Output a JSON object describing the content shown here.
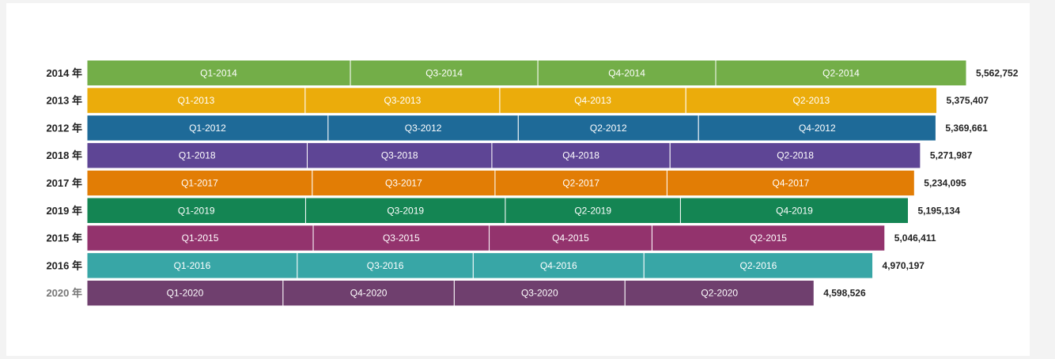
{
  "chart_data": {
    "type": "bar",
    "orientation": "horizontal",
    "stacked": true,
    "grid": false,
    "legend": "none",
    "rows": [
      {
        "label": "2014 年",
        "color": "#73ae48",
        "total_label": "5,562,752",
        "segments": [
          {
            "label": "Q1-2014",
            "value": 1666000
          },
          {
            "label": "Q3-2014",
            "value": 1186000
          },
          {
            "label": "Q4-2014",
            "value": 1125000
          },
          {
            "label": "Q2-2014",
            "value": 1585752
          }
        ]
      },
      {
        "label": "2013 年",
        "color": "#ebac0b",
        "total_label": "5,375,407",
        "segments": [
          {
            "label": "Q1-2013",
            "value": 1380000
          },
          {
            "label": "Q3-2013",
            "value": 1231000
          },
          {
            "label": "Q4-2013",
            "value": 1177000
          },
          {
            "label": "Q2-2013",
            "value": 1587407
          }
        ]
      },
      {
        "label": "2012 年",
        "color": "#1e6a98",
        "total_label": "5,369,661",
        "segments": [
          {
            "label": "Q1-2012",
            "value": 1525000
          },
          {
            "label": "Q3-2012",
            "value": 1203000
          },
          {
            "label": "Q2-2012",
            "value": 1140000
          },
          {
            "label": "Q4-2012",
            "value": 1501661
          }
        ]
      },
      {
        "label": "2018 年",
        "color": "#5e4595",
        "total_label": "5,271,987",
        "segments": [
          {
            "label": "Q1-2018",
            "value": 1393000
          },
          {
            "label": "Q3-2018",
            "value": 1168000
          },
          {
            "label": "Q4-2018",
            "value": 1127000
          },
          {
            "label": "Q2-2018",
            "value": 1583987
          }
        ]
      },
      {
        "label": "2017 年",
        "color": "#e27d05",
        "total_label": "5,234,095",
        "segments": [
          {
            "label": "Q1-2017",
            "value": 1425000
          },
          {
            "label": "Q3-2017",
            "value": 1156000
          },
          {
            "label": "Q2-2017",
            "value": 1088000
          },
          {
            "label": "Q4-2017",
            "value": 1565095
          }
        ]
      },
      {
        "label": "2019 年",
        "color": "#148553",
        "total_label": "5,195,134",
        "segments": [
          {
            "label": "Q1-2019",
            "value": 1383000
          },
          {
            "label": "Q3-2019",
            "value": 1263000
          },
          {
            "label": "Q2-2019",
            "value": 1108000
          },
          {
            "label": "Q4-2019",
            "value": 1441134
          }
        ]
      },
      {
        "label": "2015 年",
        "color": "#93336d",
        "total_label": "5,046,411",
        "segments": [
          {
            "label": "Q1-2015",
            "value": 1431000
          },
          {
            "label": "Q3-2015",
            "value": 1113000
          },
          {
            "label": "Q4-2015",
            "value": 1030000
          },
          {
            "label": "Q2-2015",
            "value": 1472411
          }
        ]
      },
      {
        "label": "2016 年",
        "color": "#38a6a6",
        "total_label": "4,970,197",
        "segments": [
          {
            "label": "Q1-2016",
            "value": 1330000
          },
          {
            "label": "Q3-2016",
            "value": 1113000
          },
          {
            "label": "Q4-2016",
            "value": 1080000
          },
          {
            "label": "Q2-2016",
            "value": 1447197
          }
        ]
      },
      {
        "label": "2020 年",
        "color": "#6f3f6e",
        "total_label": "4,598,526",
        "faded_label": true,
        "segments": [
          {
            "label": "Q1-2020",
            "value": 1240000
          },
          {
            "label": "Q4-2020",
            "value": 1083000
          },
          {
            "label": "Q3-2020",
            "value": 1080000
          },
          {
            "label": "Q2-2020",
            "value": 1195526
          }
        ]
      }
    ]
  }
}
